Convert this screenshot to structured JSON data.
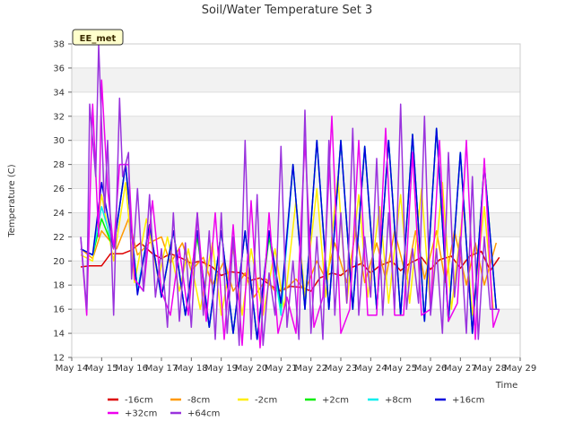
{
  "chart_data": {
    "type": "line",
    "title": "Soil/Water Temperature Set 3",
    "xlabel": "Time",
    "ylabel": "Temperature (C)",
    "badge": "EE_met",
    "xlim": [
      14,
      29
    ],
    "ylim": [
      12,
      38
    ],
    "x_ticks": [
      {
        "v": 14,
        "label": "May 14"
      },
      {
        "v": 15,
        "label": "May 15"
      },
      {
        "v": 16,
        "label": "May 16"
      },
      {
        "v": 17,
        "label": "May 17"
      },
      {
        "v": 18,
        "label": "May 18"
      },
      {
        "v": 19,
        "label": "May 19"
      },
      {
        "v": 20,
        "label": "May 20"
      },
      {
        "v": 21,
        "label": "May 21"
      },
      {
        "v": 22,
        "label": "May 22"
      },
      {
        "v": 23,
        "label": "May 23"
      },
      {
        "v": 24,
        "label": "May 24"
      },
      {
        "v": 25,
        "label": "May 25"
      },
      {
        "v": 26,
        "label": "May 26"
      },
      {
        "v": 27,
        "label": "May 27"
      },
      {
        "v": 28,
        "label": "May 28"
      },
      {
        "v": 29,
        "label": "May 29"
      }
    ],
    "y_ticks": [
      12,
      14,
      16,
      18,
      20,
      22,
      24,
      26,
      28,
      30,
      32,
      34,
      36,
      38
    ],
    "grid": true,
    "legend_position": "bottom",
    "series": [
      {
        "name": "-16cm",
        "color": "#dd0000",
        "x": [
          14.3,
          14.6,
          15.0,
          15.3,
          15.7,
          16.0,
          16.3,
          16.7,
          17.0,
          17.3,
          17.7,
          18.0,
          18.3,
          18.7,
          19.0,
          19.3,
          19.7,
          20.0,
          20.3,
          20.7,
          21.0,
          21.3,
          21.7,
          22.0,
          22.3,
          22.7,
          23.0,
          23.3,
          23.7,
          24.0,
          24.3,
          24.7,
          25.0,
          25.3,
          25.7,
          26.0,
          26.3,
          26.7,
          27.0,
          27.3,
          27.7,
          28.0,
          28.3
        ],
        "y": [
          19.5,
          19.6,
          19.6,
          20.6,
          20.6,
          20.9,
          21.5,
          20.6,
          20.2,
          20.6,
          20.2,
          19.8,
          20.0,
          19.5,
          18.8,
          19.1,
          19.0,
          18.4,
          18.6,
          17.9,
          17.5,
          17.9,
          17.8,
          17.5,
          18.6,
          19.0,
          18.8,
          19.4,
          19.8,
          19.0,
          19.6,
          20.0,
          19.2,
          19.8,
          20.3,
          19.3,
          20.1,
          20.4,
          19.4,
          20.4,
          20.8,
          19.2,
          20.3
        ]
      },
      {
        "name": "-8cm",
        "color": "#ff9900",
        "x": [
          14.3,
          14.7,
          15.0,
          15.5,
          15.9,
          16.2,
          16.6,
          17.0,
          17.3,
          17.7,
          18.0,
          18.4,
          18.7,
          19.1,
          19.4,
          19.8,
          20.1,
          20.5,
          20.8,
          21.2,
          21.5,
          21.8,
          22.2,
          22.5,
          22.8,
          23.2,
          23.5,
          23.8,
          24.2,
          24.5,
          24.8,
          25.2,
          25.5,
          25.8,
          26.2,
          26.5,
          26.8,
          27.2,
          27.5,
          27.8,
          28.2
        ],
        "y": [
          21.0,
          20.2,
          22.5,
          21.0,
          23.5,
          20.5,
          21.5,
          22.0,
          19.8,
          21.5,
          19.2,
          20.3,
          18.0,
          20.0,
          17.5,
          19.0,
          17.0,
          18.5,
          17.5,
          17.8,
          18.5,
          17.5,
          20.0,
          18.5,
          21.5,
          18.2,
          22.5,
          18.2,
          21.5,
          18.5,
          22.5,
          18.5,
          22.5,
          18.5,
          22.5,
          18.2,
          22.5,
          18.0,
          21.5,
          18.0,
          21.5
        ]
      },
      {
        "name": "-2cm",
        "color": "#ffee00",
        "x": [
          14.3,
          14.7,
          15.0,
          15.4,
          15.8,
          16.1,
          16.5,
          16.9,
          17.2,
          17.6,
          17.9,
          18.3,
          18.7,
          19.0,
          19.4,
          19.7,
          20.0,
          20.4,
          20.8,
          21.1,
          21.5,
          21.8,
          22.2,
          22.5,
          22.9,
          23.2,
          23.6,
          23.9,
          24.3,
          24.6,
          25.0,
          25.3,
          25.7,
          26.0,
          26.4,
          26.7,
          27.1,
          27.4,
          27.8,
          28.1
        ],
        "y": [
          20.5,
          20.0,
          25.5,
          20.0,
          26.5,
          18.2,
          23.5,
          18.5,
          22.0,
          17.5,
          21.0,
          16.0,
          21.5,
          15.5,
          21.0,
          15.5,
          21.0,
          15.5,
          21.0,
          16.0,
          25.0,
          17.0,
          26.0,
          17.0,
          27.0,
          16.5,
          25.5,
          17.0,
          24.5,
          16.5,
          25.5,
          16.5,
          26.0,
          16.0,
          26.5,
          16.0,
          24.5,
          15.5,
          24.5,
          16.0
        ]
      },
      {
        "name": "+2cm",
        "color": "#00ee00",
        "x": [
          14.3,
          14.7,
          15.0,
          15.4,
          15.8,
          16.2,
          16.6,
          17.0,
          17.4,
          17.8,
          18.2,
          18.6,
          19.0,
          19.4,
          19.8,
          20.2,
          20.6,
          21.0,
          21.4,
          21.8,
          22.2,
          22.6,
          23.0,
          23.4,
          23.8,
          24.2,
          24.6,
          25.0,
          25.4,
          25.8,
          26.2,
          26.6,
          27.0,
          27.4,
          27.8,
          28.2
        ],
        "y": [
          21.0,
          20.5,
          23.5,
          21.0,
          28.0,
          17.5,
          23.0,
          17.0,
          22.5,
          15.5,
          22.0,
          14.5,
          22.5,
          14.0,
          22.5,
          13.5,
          22.0,
          16.0,
          28.0,
          16.0,
          30.0,
          16.0,
          30.0,
          16.0,
          29.5,
          16.0,
          30.0,
          15.5,
          30.5,
          15.0,
          31.0,
          15.0,
          29.0,
          14.0,
          28.0,
          16.0
        ]
      },
      {
        "name": "+8cm",
        "color": "#00eeee",
        "x": [
          14.3,
          14.7,
          15.0,
          15.4,
          15.8,
          16.2,
          16.6,
          17.0,
          17.4,
          17.8,
          18.2,
          18.6,
          19.0,
          19.4,
          19.8,
          20.2,
          20.6,
          21.0,
          21.4,
          21.8,
          22.2,
          22.6,
          23.0,
          23.4,
          23.8,
          24.2,
          24.6,
          25.0,
          25.4,
          25.8,
          26.2,
          26.6,
          27.0,
          27.4,
          27.8,
          28.2
        ],
        "y": [
          21.0,
          20.5,
          24.5,
          21.0,
          28.0,
          17.5,
          23.0,
          17.0,
          22.5,
          15.5,
          22.5,
          14.5,
          22.5,
          14.0,
          22.5,
          13.5,
          22.5,
          15.5,
          28.0,
          16.0,
          30.0,
          16.0,
          30.0,
          16.0,
          29.5,
          16.0,
          30.0,
          15.5,
          30.5,
          15.0,
          31.0,
          15.0,
          29.0,
          14.0,
          28.0,
          16.0
        ]
      },
      {
        "name": "+16cm",
        "color": "#0000dd",
        "x": [
          14.3,
          14.7,
          15.0,
          15.4,
          15.8,
          16.2,
          16.6,
          17.0,
          17.4,
          17.8,
          18.2,
          18.6,
          19.0,
          19.4,
          19.8,
          20.2,
          20.6,
          21.0,
          21.4,
          21.8,
          22.2,
          22.6,
          23.0,
          23.4,
          23.8,
          24.2,
          24.6,
          25.0,
          25.4,
          25.8,
          26.2,
          26.6,
          27.0,
          27.4,
          27.8,
          28.2
        ],
        "y": [
          21.0,
          20.5,
          26.5,
          21.0,
          28.0,
          17.2,
          23.0,
          17.0,
          22.5,
          15.5,
          22.5,
          14.5,
          22.5,
          14.0,
          22.5,
          13.5,
          22.5,
          16.5,
          28.0,
          16.0,
          30.0,
          16.0,
          30.0,
          16.0,
          29.5,
          16.0,
          30.0,
          15.5,
          30.5,
          15.0,
          31.0,
          15.0,
          29.0,
          14.0,
          28.0,
          16.0
        ]
      },
      {
        "name": "+32cm",
        "color": "#ee00ee",
        "x": [
          14.3,
          14.5,
          14.7,
          14.9,
          15.0,
          15.2,
          15.4,
          15.6,
          15.9,
          16.1,
          16.4,
          16.7,
          17.0,
          17.3,
          17.6,
          17.9,
          18.2,
          18.5,
          18.8,
          19.1,
          19.4,
          19.7,
          20.0,
          20.3,
          20.6,
          20.9,
          21.2,
          21.5,
          21.8,
          22.1,
          22.4,
          22.7,
          23.0,
          23.3,
          23.6,
          23.9,
          24.2,
          24.5,
          24.8,
          25.1,
          25.4,
          25.7,
          26.0,
          26.3,
          26.6,
          26.9,
          27.2,
          27.5,
          27.8,
          28.1,
          28.3
        ],
        "y": [
          22.0,
          15.5,
          33.0,
          22.0,
          35.0,
          26.0,
          21.0,
          28.0,
          28.0,
          18.5,
          17.5,
          25.0,
          17.5,
          15.5,
          21.0,
          15.5,
          24.0,
          15.0,
          24.0,
          13.5,
          23.0,
          13.0,
          25.0,
          12.8,
          24.0,
          14.0,
          17.0,
          14.0,
          30.0,
          14.5,
          17.0,
          32.0,
          14.0,
          16.0,
          30.0,
          15.5,
          15.5,
          31.0,
          15.5,
          15.5,
          29.0,
          15.5,
          16.0,
          30.0,
          15.0,
          16.5,
          30.0,
          13.5,
          28.5,
          14.5,
          16.0
        ]
      },
      {
        "name": "+64cm",
        "color": "#9933dd",
        "x": [
          14.3,
          14.5,
          14.6,
          14.8,
          14.9,
          15.1,
          15.2,
          15.4,
          15.6,
          15.7,
          15.9,
          16.0,
          16.2,
          16.4,
          16.6,
          16.8,
          17.0,
          17.2,
          17.4,
          17.6,
          17.8,
          18.0,
          18.2,
          18.4,
          18.6,
          18.8,
          19.0,
          19.2,
          19.4,
          19.6,
          19.8,
          20.0,
          20.2,
          20.4,
          20.6,
          20.8,
          21.0,
          21.2,
          21.4,
          21.6,
          21.8,
          22.0,
          22.2,
          22.4,
          22.6,
          22.8,
          23.0,
          23.2,
          23.4,
          23.6,
          23.8,
          24.0,
          24.2,
          24.4,
          24.6,
          24.8,
          25.0,
          25.2,
          25.4,
          25.6,
          25.8,
          26.0,
          26.2,
          26.4,
          26.6,
          26.8,
          27.0,
          27.2,
          27.4,
          27.6,
          27.8,
          28.0,
          28.2,
          28.3
        ],
        "y": [
          22.0,
          16.0,
          33.0,
          27.0,
          38.0,
          24.0,
          30.0,
          15.5,
          33.5,
          27.0,
          29.0,
          18.5,
          26.0,
          17.5,
          25.5,
          17.0,
          21.0,
          14.5,
          24.0,
          15.0,
          21.5,
          14.5,
          24.0,
          15.5,
          22.5,
          13.5,
          24.0,
          14.0,
          22.0,
          13.0,
          30.0,
          13.5,
          25.5,
          13.0,
          19.0,
          15.5,
          29.5,
          14.5,
          20.0,
          13.5,
          32.5,
          14.0,
          22.0,
          13.5,
          30.0,
          15.5,
          24.0,
          16.5,
          31.0,
          15.5,
          22.0,
          17.0,
          28.5,
          15.5,
          24.0,
          16.0,
          33.0,
          16.0,
          21.0,
          16.5,
          32.0,
          15.5,
          21.0,
          14.0,
          29.0,
          17.0,
          22.0,
          14.0,
          27.0,
          13.5,
          22.0,
          16.0,
          16.0,
          16.0
        ]
      }
    ]
  }
}
